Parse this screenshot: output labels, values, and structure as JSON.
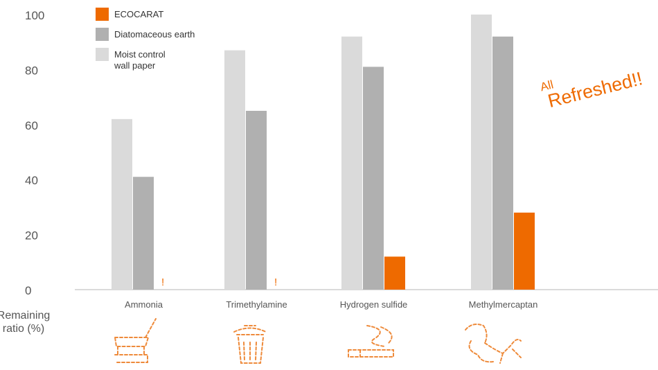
{
  "chart_data": {
    "type": "bar",
    "categories": [
      "Ammonia",
      "Trimethylamine",
      "Hydrogen sulfide",
      "Methylmercaptan"
    ],
    "series": [
      {
        "name": "Moist control\nwall paper",
        "color": "#dadada",
        "values": [
          62,
          87,
          92,
          100
        ]
      },
      {
        "name": "Diatomaceous earth",
        "color": "#b0b0b0",
        "values": [
          41,
          65,
          81,
          92
        ]
      },
      {
        "name": "ECOCARAT",
        "color": "#ee6a00",
        "values": [
          0,
          0,
          12,
          28
        ]
      }
    ],
    "ylim": [
      0,
      100
    ],
    "yticks": [
      0,
      20,
      40,
      60,
      80,
      100
    ],
    "ylabel": "Remaining\nratio (%)",
    "legend_order": [
      "ECOCARAT",
      "Diatomaceous earth",
      "Moist control\nwall paper"
    ],
    "legend_position": "top-left",
    "grid": false,
    "near_zero_marks": [
      "!",
      "!",
      "",
      ""
    ],
    "annotation": {
      "small": "All",
      "large": "Refreshed!!",
      "color": "#ee6a00"
    },
    "category_icons": [
      "chair-icon",
      "trash-can-icon",
      "cigarette-icon",
      "dog-icon"
    ]
  }
}
